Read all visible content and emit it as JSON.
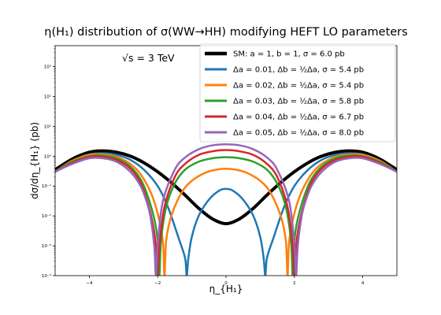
{
  "chart_data": {
    "type": "line",
    "title": "η(H₁) distribution of σ(WW→HH) modifying HEFT LO parameters",
    "xlabel": "η_{H₁}",
    "ylabel": "dσ/dη_{H₁} (pb)",
    "annotation": "√s = 3 TeV",
    "xlim": [
      -5,
      5
    ],
    "ylim": [
      0.0001,
      5000
    ],
    "yscale": "log",
    "xticks": [
      -4,
      -2,
      0,
      2,
      4
    ],
    "xtick_labels": [
      "−4",
      "−2",
      "0",
      "2",
      "4"
    ],
    "yticks": [
      0.0001,
      0.001,
      0.01,
      0.1,
      1,
      10,
      100,
      1000
    ],
    "ytick_labels": [
      "10⁻⁴",
      "10⁻³",
      "10⁻²",
      "10⁻¹",
      "10⁰",
      "10¹",
      "10²",
      "10³"
    ],
    "grid": false,
    "legend_position": "top-right",
    "series": [
      {
        "name": "SM: a = 1, b = 1, σ = 6.0 pb",
        "color": "#000000",
        "width": 4,
        "x": [
          -5,
          -4.5,
          -4,
          -3.6,
          -3.2,
          -2.8,
          -2.4,
          -2,
          -1.6,
          -1.2,
          -0.8,
          -0.4,
          0,
          0.4,
          0.8,
          1.2,
          1.6,
          2,
          2.4,
          2.8,
          3.2,
          3.6,
          4,
          4.5,
          5
        ],
        "y": [
          0.35,
          0.8,
          1.35,
          1.5,
          1.35,
          1.0,
          0.6,
          0.3,
          0.13,
          0.05,
          0.018,
          0.008,
          0.0055,
          0.008,
          0.018,
          0.05,
          0.13,
          0.3,
          0.6,
          1.0,
          1.35,
          1.5,
          1.35,
          0.8,
          0.35
        ]
      },
      {
        "name": "Δa = 0.01, Δb = ½Δa, σ = 5.4 pb",
        "color": "#1f77b4",
        "width": 2.5,
        "x": [
          -5,
          -4.5,
          -4,
          -3.6,
          -3.2,
          -2.8,
          -2.4,
          -2.0,
          -1.7,
          -1.4,
          -1.2,
          -1.15,
          -1.1,
          -1.0,
          -0.8,
          -0.5,
          -0.2,
          0,
          0.2,
          0.5,
          0.8,
          1.0,
          1.1,
          1.15,
          1.2,
          1.4,
          1.7,
          2.0,
          2.4,
          2.8,
          3.2,
          3.6,
          4,
          4.5,
          5
        ],
        "y": [
          0.3,
          0.7,
          1.15,
          1.25,
          1.1,
          0.75,
          0.35,
          0.1,
          0.02,
          0.002,
          0.0004,
          0.0001,
          0.0004,
          0.002,
          0.01,
          0.035,
          0.07,
          0.08,
          0.07,
          0.035,
          0.01,
          0.002,
          0.0004,
          0.0001,
          0.0004,
          0.002,
          0.02,
          0.1,
          0.35,
          0.75,
          1.1,
          1.25,
          1.15,
          0.7,
          0.3
        ]
      },
      {
        "name": "Δa = 0.02, Δb = ½Δa, σ = 5.4 pb",
        "color": "#ff7f0e",
        "width": 2.5,
        "x": [
          -5,
          -4.5,
          -4,
          -3.6,
          -3.2,
          -2.8,
          -2.5,
          -2.2,
          -2.0,
          -1.85,
          -1.8,
          -1.75,
          -1.6,
          -1.3,
          -1.0,
          -0.6,
          -0.3,
          0,
          0.3,
          0.6,
          1.0,
          1.3,
          1.6,
          1.75,
          1.8,
          1.85,
          2.0,
          2.2,
          2.5,
          2.8,
          3.2,
          3.6,
          4,
          4.5,
          5
        ],
        "y": [
          0.3,
          0.7,
          1.1,
          1.15,
          0.95,
          0.55,
          0.25,
          0.06,
          0.012,
          0.0015,
          0.0001,
          0.0015,
          0.01,
          0.06,
          0.15,
          0.28,
          0.35,
          0.38,
          0.35,
          0.28,
          0.15,
          0.06,
          0.01,
          0.0015,
          0.0001,
          0.0015,
          0.012,
          0.06,
          0.25,
          0.55,
          0.95,
          1.15,
          1.1,
          0.7,
          0.3
        ]
      },
      {
        "name": "Δa = 0.03, Δb = ½Δa, σ = 5.8 pb",
        "color": "#2ca02c",
        "width": 2.5,
        "x": [
          -5,
          -4.5,
          -4,
          -3.6,
          -3.2,
          -2.8,
          -2.5,
          -2.3,
          -2.1,
          -2.0,
          -1.95,
          -1.9,
          -1.75,
          -1.5,
          -1.2,
          -0.8,
          -0.4,
          0,
          0.4,
          0.8,
          1.2,
          1.5,
          1.75,
          1.9,
          1.95,
          2.0,
          2.1,
          2.3,
          2.5,
          2.8,
          3.2,
          3.6,
          4,
          4.5,
          5
        ],
        "y": [
          0.3,
          0.65,
          1.0,
          1.05,
          0.85,
          0.45,
          0.17,
          0.05,
          0.008,
          0.0015,
          0.0001,
          0.0015,
          0.02,
          0.12,
          0.35,
          0.65,
          0.85,
          0.92,
          0.85,
          0.65,
          0.35,
          0.12,
          0.02,
          0.0015,
          0.0001,
          0.0015,
          0.008,
          0.05,
          0.17,
          0.45,
          0.85,
          1.05,
          1.0,
          0.65,
          0.3
        ]
      },
      {
        "name": "Δa = 0.04, Δb = ½Δa, σ = 6.7 pb",
        "color": "#d62728",
        "width": 2.5,
        "x": [
          -5,
          -4.5,
          -4,
          -3.6,
          -3.2,
          -2.8,
          -2.5,
          -2.3,
          -2.15,
          -2.05,
          -2.0,
          -1.95,
          -1.8,
          -1.5,
          -1.2,
          -0.8,
          -0.4,
          0,
          0.4,
          0.8,
          1.2,
          1.5,
          1.8,
          1.95,
          2.0,
          2.05,
          2.15,
          2.3,
          2.5,
          2.8,
          3.2,
          3.6,
          4,
          4.5,
          5
        ],
        "y": [
          0.3,
          0.6,
          0.95,
          0.95,
          0.75,
          0.38,
          0.13,
          0.03,
          0.006,
          0.001,
          0.0001,
          0.001,
          0.02,
          0.2,
          0.55,
          1.1,
          1.45,
          1.6,
          1.45,
          1.1,
          0.55,
          0.2,
          0.02,
          0.001,
          0.0001,
          0.001,
          0.006,
          0.03,
          0.13,
          0.38,
          0.75,
          0.95,
          0.95,
          0.6,
          0.3
        ]
      },
      {
        "name": "Δa = 0.05, Δb = ½Δa, σ = 8.0 pb",
        "color": "#9467bd",
        "width": 2.5,
        "x": [
          -5,
          -4.5,
          -4,
          -3.6,
          -3.2,
          -2.8,
          -2.5,
          -2.3,
          -2.2,
          -2.1,
          -2.05,
          -2.0,
          -1.85,
          -1.5,
          -1.2,
          -0.8,
          -0.4,
          0,
          0.4,
          0.8,
          1.2,
          1.5,
          1.85,
          2.0,
          2.05,
          2.1,
          2.2,
          2.3,
          2.5,
          2.8,
          3.2,
          3.6,
          4,
          4.5,
          5
        ],
        "y": [
          0.3,
          0.55,
          0.85,
          0.85,
          0.65,
          0.3,
          0.1,
          0.025,
          0.008,
          0.001,
          0.0001,
          0.001,
          0.03,
          0.35,
          0.9,
          1.7,
          2.3,
          2.5,
          2.3,
          1.7,
          0.9,
          0.35,
          0.03,
          0.001,
          0.0001,
          0.001,
          0.008,
          0.025,
          0.1,
          0.3,
          0.65,
          0.85,
          0.85,
          0.55,
          0.3
        ]
      }
    ]
  }
}
